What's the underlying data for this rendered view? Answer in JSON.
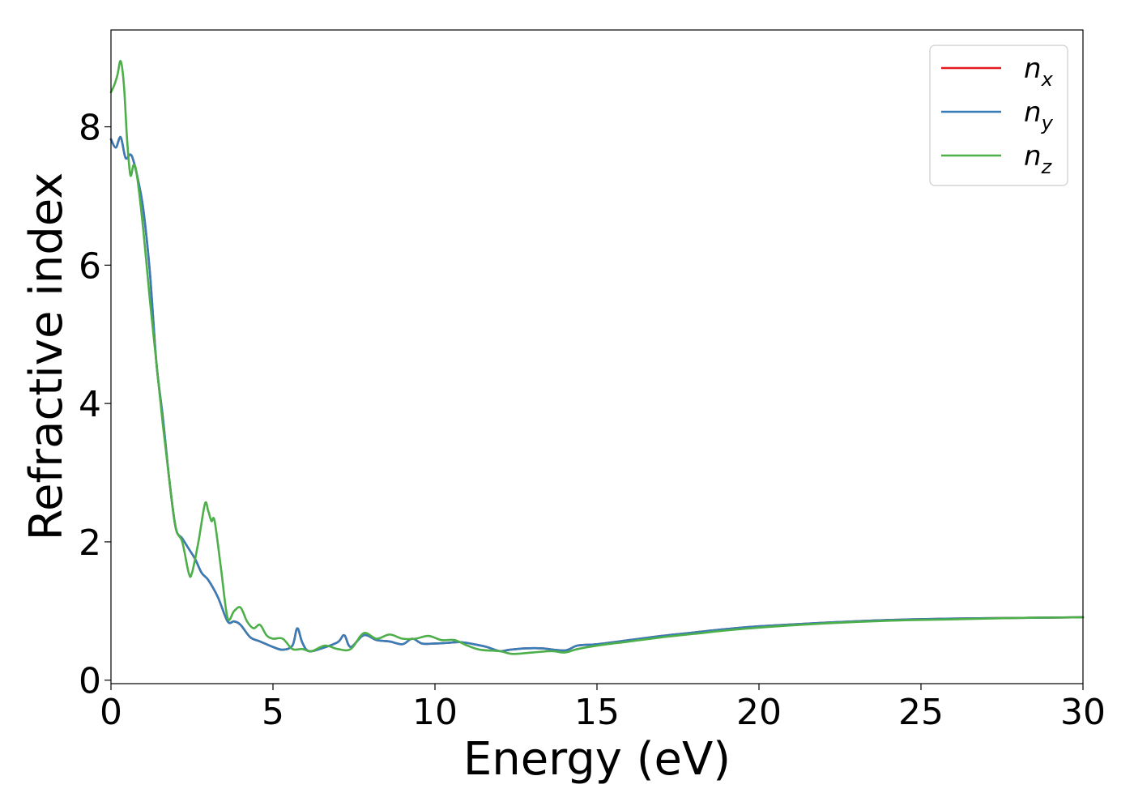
{
  "chart_data": {
    "type": "line",
    "title": "",
    "xlabel": "Energy (eV)",
    "ylabel": "Refractive index",
    "xlim": [
      0,
      30
    ],
    "ylim": [
      -0.05,
      9.4
    ],
    "xticks": [
      0,
      5,
      10,
      15,
      20,
      25,
      30
    ],
    "yticks": [
      0,
      2,
      4,
      6,
      8
    ],
    "grid": false,
    "legend_position": "top-right",
    "series": [
      {
        "name": "n_x",
        "legend_base": "n",
        "legend_sub": "x",
        "color": "#e41a1c",
        "x": [
          0,
          0.15,
          0.3,
          0.45,
          0.6,
          0.7,
          0.85,
          1.0,
          1.2,
          1.4,
          1.6,
          1.8,
          2.0,
          2.2,
          2.4,
          2.6,
          2.8,
          3.0,
          3.3,
          3.6,
          3.8,
          4.0,
          4.3,
          4.6,
          5.0,
          5.3,
          5.6,
          5.75,
          5.9,
          6.1,
          6.5,
          7.0,
          7.2,
          7.4,
          7.8,
          8.2,
          8.6,
          9.0,
          9.3,
          9.6,
          10.0,
          10.4,
          10.8,
          11.2,
          11.6,
          12.0,
          12.3,
          12.8,
          13.3,
          14.0,
          14.4,
          15.0,
          16.0,
          17.0,
          18.0,
          19.0,
          20.0,
          22.0,
          24.0,
          26.0,
          28.0,
          30.0
        ],
        "values": [
          7.82,
          7.7,
          7.85,
          7.55,
          7.6,
          7.5,
          7.2,
          6.8,
          5.9,
          4.6,
          3.8,
          2.9,
          2.2,
          2.05,
          1.9,
          1.75,
          1.55,
          1.45,
          1.2,
          0.85,
          0.85,
          0.8,
          0.62,
          0.56,
          0.48,
          0.44,
          0.5,
          0.75,
          0.55,
          0.42,
          0.46,
          0.55,
          0.65,
          0.48,
          0.65,
          0.58,
          0.56,
          0.52,
          0.6,
          0.53,
          0.53,
          0.54,
          0.55,
          0.52,
          0.48,
          0.42,
          0.44,
          0.46,
          0.46,
          0.43,
          0.5,
          0.52,
          0.58,
          0.64,
          0.69,
          0.74,
          0.78,
          0.83,
          0.87,
          0.89,
          0.9,
          0.91
        ]
      },
      {
        "name": "n_y",
        "legend_base": "n",
        "legend_sub": "y",
        "color": "#377eb8",
        "x": [
          0,
          0.15,
          0.3,
          0.45,
          0.6,
          0.7,
          0.85,
          1.0,
          1.2,
          1.4,
          1.6,
          1.8,
          2.0,
          2.2,
          2.4,
          2.6,
          2.8,
          3.0,
          3.3,
          3.6,
          3.8,
          4.0,
          4.3,
          4.6,
          5.0,
          5.3,
          5.6,
          5.75,
          5.9,
          6.1,
          6.5,
          7.0,
          7.2,
          7.4,
          7.8,
          8.2,
          8.6,
          9.0,
          9.3,
          9.6,
          10.0,
          10.4,
          10.8,
          11.2,
          11.6,
          12.0,
          12.3,
          12.8,
          13.3,
          14.0,
          14.4,
          15.0,
          16.0,
          17.0,
          18.0,
          19.0,
          20.0,
          22.0,
          24.0,
          26.0,
          28.0,
          30.0
        ],
        "values": [
          7.82,
          7.7,
          7.85,
          7.55,
          7.6,
          7.5,
          7.2,
          6.8,
          5.9,
          4.6,
          3.8,
          2.9,
          2.2,
          2.05,
          1.9,
          1.75,
          1.55,
          1.45,
          1.2,
          0.85,
          0.85,
          0.8,
          0.62,
          0.56,
          0.48,
          0.44,
          0.5,
          0.75,
          0.55,
          0.42,
          0.46,
          0.55,
          0.65,
          0.48,
          0.65,
          0.58,
          0.56,
          0.52,
          0.6,
          0.53,
          0.53,
          0.54,
          0.55,
          0.52,
          0.48,
          0.42,
          0.44,
          0.46,
          0.46,
          0.43,
          0.5,
          0.52,
          0.58,
          0.64,
          0.69,
          0.74,
          0.78,
          0.83,
          0.87,
          0.89,
          0.9,
          0.91
        ]
      },
      {
        "name": "n_z",
        "legend_base": "n",
        "legend_sub": "z",
        "color": "#4daf4a",
        "x": [
          0,
          0.1,
          0.2,
          0.3,
          0.4,
          0.5,
          0.6,
          0.7,
          0.8,
          1.0,
          1.2,
          1.4,
          1.6,
          1.8,
          2.0,
          2.2,
          2.4,
          2.5,
          2.7,
          2.9,
          3.0,
          3.1,
          3.2,
          3.4,
          3.6,
          3.8,
          4.0,
          4.2,
          4.4,
          4.6,
          4.8,
          5.0,
          5.3,
          5.6,
          5.9,
          6.2,
          6.6,
          7.0,
          7.4,
          7.8,
          8.2,
          8.6,
          9.0,
          9.4,
          9.8,
          10.2,
          10.6,
          11.0,
          11.4,
          12.0,
          12.4,
          13.0,
          13.6,
          14.0,
          14.4,
          15.0,
          16.0,
          17.0,
          18.0,
          19.0,
          20.0,
          22.0,
          24.0,
          26.0,
          28.0,
          30.0
        ],
        "values": [
          8.5,
          8.6,
          8.75,
          8.95,
          8.6,
          7.8,
          7.3,
          7.45,
          7.3,
          6.5,
          5.5,
          4.6,
          3.7,
          2.9,
          2.2,
          2.0,
          1.55,
          1.55,
          2.0,
          2.55,
          2.45,
          2.3,
          2.3,
          1.6,
          0.9,
          1.0,
          1.05,
          0.85,
          0.75,
          0.8,
          0.65,
          0.6,
          0.6,
          0.45,
          0.45,
          0.42,
          0.5,
          0.45,
          0.45,
          0.68,
          0.6,
          0.66,
          0.6,
          0.6,
          0.64,
          0.58,
          0.58,
          0.5,
          0.44,
          0.42,
          0.38,
          0.4,
          0.42,
          0.4,
          0.45,
          0.5,
          0.56,
          0.62,
          0.67,
          0.72,
          0.76,
          0.82,
          0.86,
          0.88,
          0.9,
          0.91
        ]
      }
    ]
  }
}
